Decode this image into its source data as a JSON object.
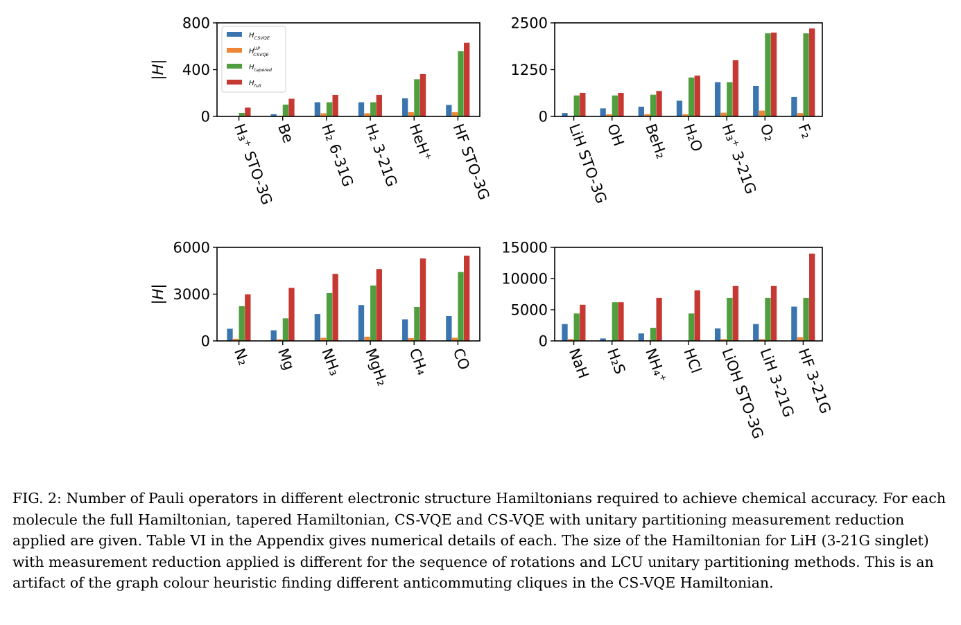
{
  "colors": {
    "csvqe": "#3b75af",
    "csvqe_up": "#ef8636",
    "tapered": "#519e3e",
    "full": "#c53932"
  },
  "chart_data": [
    {
      "type": "bar",
      "ylabel": "|H|",
      "ylim": [
        0,
        800
      ],
      "yticks": [
        0,
        400,
        800
      ],
      "legend": "top-left",
      "categories": [
        "H₃⁺ STO-3G",
        "Be",
        "H₂ 6-31G",
        "H₂ 3-21G",
        "HeH⁺",
        "HF STO-3G"
      ],
      "series": [
        {
          "name": "H_CSVQE",
          "color_key": "csvqe",
          "values": [
            0,
            19,
            121,
            121,
            155,
            98
          ]
        },
        {
          "name": "H_CSVQE^UP",
          "color_key": "csvqe_up",
          "values": [
            0,
            6,
            27,
            27,
            36,
            36
          ]
        },
        {
          "name": "H_tapered",
          "color_key": "tapered",
          "values": [
            30,
            101,
            121,
            121,
            318,
            557
          ]
        },
        {
          "name": "H_full",
          "color_key": "full",
          "values": [
            75,
            151,
            184,
            184,
            362,
            630
          ]
        }
      ]
    },
    {
      "type": "bar",
      "ylabel": "",
      "ylim": [
        0,
        2500
      ],
      "yticks": [
        0,
        1250,
        2500
      ],
      "categories": [
        "LiH STO-3G",
        "OH",
        "BeH₂",
        "H₂O",
        "H₃⁺ 3-21G",
        "O₂",
        "F₂"
      ],
      "series": [
        {
          "name": "H_CSVQE",
          "color_key": "csvqe",
          "values": [
            90,
            215,
            260,
            420,
            915,
            815,
            520
          ]
        },
        {
          "name": "H_CSVQE^UP",
          "color_key": "csvqe_up",
          "values": [
            10,
            55,
            60,
            55,
            100,
            155,
            90
          ]
        },
        {
          "name": "H_tapered",
          "color_key": "tapered",
          "values": [
            560,
            560,
            580,
            1040,
            915,
            2220,
            2220
          ]
        },
        {
          "name": "H_full",
          "color_key": "full",
          "values": [
            630,
            630,
            680,
            1090,
            1500,
            2240,
            2350
          ]
        }
      ]
    },
    {
      "type": "bar",
      "ylabel": "|H|",
      "ylim": [
        0,
        6000
      ],
      "yticks": [
        0,
        3000,
        6000
      ],
      "categories": [
        "N₂",
        "Mg",
        "NH₃",
        "MgH₂",
        "CH₄",
        "CO"
      ],
      "series": [
        {
          "name": "H_CSVQE",
          "color_key": "csvqe",
          "values": [
            780,
            680,
            1730,
            2300,
            1380,
            1600
          ]
        },
        {
          "name": "H_CSVQE^UP",
          "color_key": "csvqe_up",
          "values": [
            140,
            110,
            200,
            270,
            180,
            200
          ]
        },
        {
          "name": "H_tapered",
          "color_key": "tapered",
          "values": [
            2230,
            1450,
            3070,
            3550,
            2180,
            4420
          ]
        },
        {
          "name": "H_full",
          "color_key": "full",
          "values": [
            2990,
            3400,
            4300,
            4610,
            5290,
            5470
          ]
        }
      ]
    },
    {
      "type": "bar",
      "ylabel": "",
      "ylim": [
        0,
        15000
      ],
      "yticks": [
        0,
        5000,
        10000,
        15000
      ],
      "categories": [
        "NaH",
        "H₂S",
        "NH₄⁺",
        "HCl",
        "LiOH STO-3G",
        "LiH 3-21G",
        "HF 3-21G"
      ],
      "series": [
        {
          "name": "H_CSVQE",
          "color_key": "csvqe",
          "values": [
            2700,
            400,
            1200,
            0,
            2000,
            2700,
            5500
          ]
        },
        {
          "name": "H_CSVQE^UP",
          "color_key": "csvqe_up",
          "values": [
            300,
            50,
            100,
            0,
            300,
            300,
            600
          ]
        },
        {
          "name": "H_tapered",
          "color_key": "tapered",
          "values": [
            4400,
            6200,
            2100,
            4400,
            6900,
            6900,
            6900
          ]
        },
        {
          "name": "H_full",
          "color_key": "full",
          "values": [
            5800,
            6200,
            6900,
            8100,
            8800,
            8800,
            14000
          ]
        }
      ]
    }
  ],
  "caption": "FIG. 2: Number of Pauli operators in different electronic structure Hamiltonians required to achieve chemical accuracy. For each molecule the full Hamiltonian, tapered Hamiltonian, CS-VQE and CS-VQE with unitary partitioning measurement reduction applied are given. Table VI in the Appendix gives numerical details of each. The size of the Hamiltonian for LiH (3-21G singlet) with measurement reduction applied is different for the sequence of rotations and LCU unitary partitioning methods. This is an artifact of the graph colour heuristic finding different anticommuting cliques in the CS-VQE Hamiltonian."
}
